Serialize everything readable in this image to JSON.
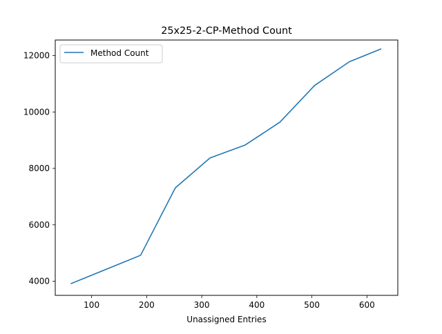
{
  "chart_data": {
    "type": "line",
    "title": "25x25-2-CP-Method Count",
    "xlabel": "Unassigned Entries",
    "ylabel": "",
    "xlim": [
      34,
      656
    ],
    "ylim": [
      3500,
      12550
    ],
    "xticks": [
      100,
      200,
      300,
      400,
      500,
      600
    ],
    "yticks": [
      4000,
      6000,
      8000,
      10000,
      12000
    ],
    "grid": false,
    "legend_position": "upper-left",
    "series": [
      {
        "name": "Method Count",
        "color": "#1f77b4",
        "x": [
          63,
          189,
          252,
          315,
          379,
          442,
          505,
          568,
          625
        ],
        "y": [
          3920,
          4920,
          7310,
          8370,
          8830,
          9640,
          10940,
          11780,
          12230
        ]
      }
    ]
  }
}
